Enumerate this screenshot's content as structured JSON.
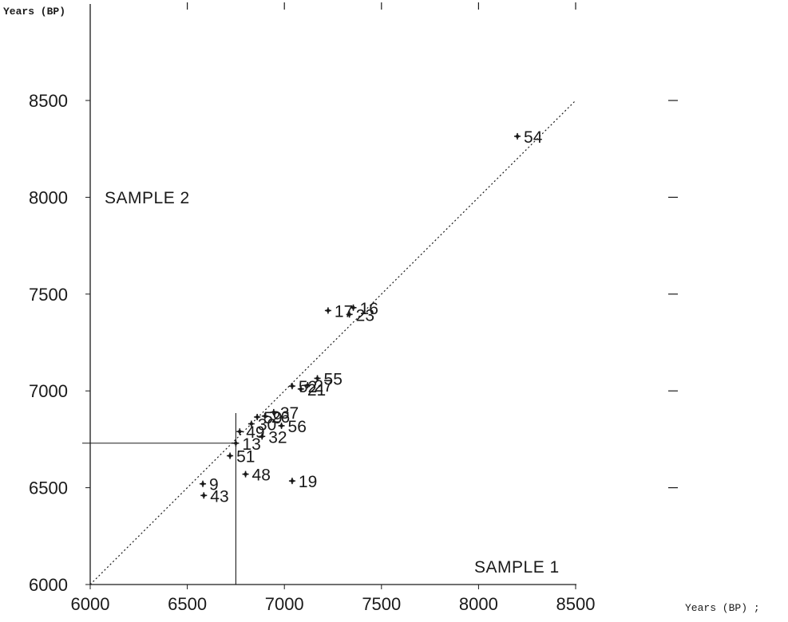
{
  "chart_data": {
    "type": "scatter",
    "ylabel": "Years (BP)",
    "xlabel": "Years (BP) ;",
    "sample_x_label": "SAMPLE 1",
    "sample_y_label": "SAMPLE 2",
    "xlim": [
      6000,
      9000
    ],
    "ylim": [
      6000,
      9000
    ],
    "x_ticks": [
      6000,
      6500,
      7000,
      7500,
      8000,
      8500
    ],
    "y_ticks": [
      6000,
      6500,
      7000,
      7500,
      8000,
      8500
    ],
    "x_tick_labels": [
      "6000",
      "6500",
      "7000",
      "7500",
      "8000",
      "8500"
    ],
    "y_tick_labels": [
      "6000",
      "6500",
      "7000",
      "7500",
      "8000",
      "8500"
    ],
    "top_ticks": [
      6500,
      7000,
      7500,
      8000,
      8500
    ],
    "right_ticks": [
      6500,
      7000,
      7500,
      8000,
      8500
    ],
    "reference_line": {
      "from": [
        6000,
        6000
      ],
      "to": [
        8500,
        8500
      ],
      "style": "dotted"
    },
    "marker_lines": {
      "x": 6750,
      "y": 6730
    },
    "grid": false,
    "points": [
      {
        "label": "54",
        "x": 8200,
        "y": 8315
      },
      {
        "label": "17",
        "x": 7225,
        "y": 7415
      },
      {
        "label": "16",
        "x": 7355,
        "y": 7430
      },
      {
        "label": "23",
        "x": 7335,
        "y": 7395
      },
      {
        "label": "55",
        "x": 7170,
        "y": 7065
      },
      {
        "label": "52",
        "x": 7040,
        "y": 7025
      },
      {
        "label": "27",
        "x": 7120,
        "y": 7030
      },
      {
        "label": "21",
        "x": 7085,
        "y": 7010
      },
      {
        "label": "59",
        "x": 6860,
        "y": 6865
      },
      {
        "label": "26",
        "x": 6900,
        "y": 6870
      },
      {
        "label": "37",
        "x": 6945,
        "y": 6890
      },
      {
        "label": "56",
        "x": 6985,
        "y": 6820
      },
      {
        "label": "30",
        "x": 6830,
        "y": 6830
      },
      {
        "label": "49",
        "x": 6770,
        "y": 6790
      },
      {
        "label": "32",
        "x": 6885,
        "y": 6765
      },
      {
        "label": "13",
        "x": 6750,
        "y": 6730
      },
      {
        "label": "51",
        "x": 6720,
        "y": 6665
      },
      {
        "label": "48",
        "x": 6800,
        "y": 6570
      },
      {
        "label": "19",
        "x": 7040,
        "y": 6535
      },
      {
        "label": "9",
        "x": 6580,
        "y": 6520
      },
      {
        "label": "43",
        "x": 6585,
        "y": 6460
      }
    ]
  }
}
